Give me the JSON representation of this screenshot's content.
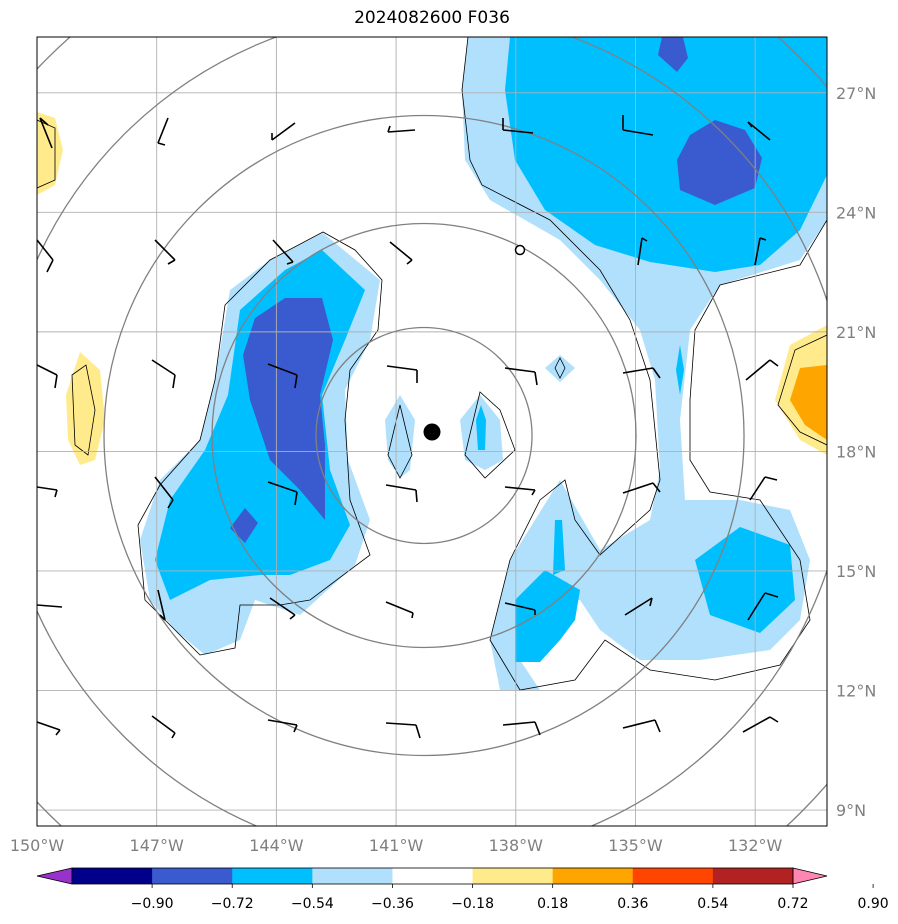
{
  "title": "2024082600 F036",
  "map": {
    "lon_labels": [
      "150°W",
      "147°W",
      "144°W",
      "141°W",
      "138°W",
      "135°W",
      "132°W"
    ],
    "lat_labels": [
      "27°N",
      "24°N",
      "21°N",
      "18°N",
      "15°N",
      "12°N",
      "9°N"
    ],
    "lon_values": [
      -150,
      -147,
      -144,
      -141,
      -138,
      -135,
      -132
    ],
    "lat_values": [
      27,
      24,
      21,
      18,
      15,
      12,
      9
    ],
    "lon_range": [
      -150,
      -130.2
    ],
    "lat_range": [
      8.6,
      28.4
    ],
    "center": {
      "lon": -140.3,
      "lat": 18.4
    },
    "grid": true,
    "range_rings": 5
  },
  "colorbar": {
    "levels": [
      "−0.90",
      "−0.72",
      "−0.54",
      "−0.36",
      "−0.18",
      "0.18",
      "0.36",
      "0.54",
      "0.72",
      "0.90"
    ],
    "colors": [
      "#9932cc",
      "#00008b",
      "#3a5bd0",
      "#00bfff",
      "#b0e0fc",
      "#ffffff",
      "#ffeb8c",
      "#ffa500",
      "#ff4500",
      "#b22222",
      "#ff85b3"
    ]
  },
  "fill_colors": {
    "light_blue": "#b0e0fc",
    "blue": "#00bfff",
    "dark_blue": "#3a5bd0",
    "yellow": "#ffeb8c",
    "orange": "#ffa500"
  }
}
